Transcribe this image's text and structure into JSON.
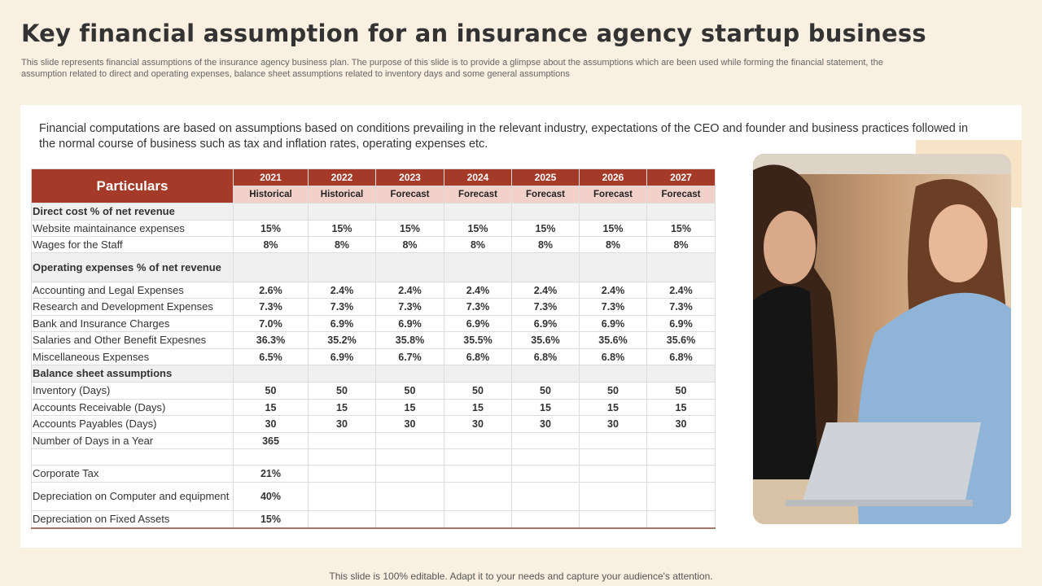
{
  "header": {
    "title": "Key financial assumption for an insurance agency startup business",
    "description": "This slide represents financial assumptions of the insurance agency business plan. The purpose of this slide is to provide a glimpse about the assumptions which are been used while forming the financial statement, the assumption related to direct and operating expenses, balance sheet assumptions related to inventory days and some general assumptions"
  },
  "intro": "Financial computations are based on assumptions based on conditions prevailing in the relevant industry, expectations of the CEO and founder and business practices followed in the normal course of business such as tax and inflation rates, operating expenses etc.",
  "table": {
    "corner": "Particulars",
    "years": [
      "2021",
      "2022",
      "2023",
      "2024",
      "2025",
      "2026",
      "2027"
    ],
    "phases": [
      "Historical",
      "Historical",
      "Forecast",
      "Forecast",
      "Forecast",
      "Forecast",
      "Forecast"
    ],
    "rows": [
      {
        "section": "Direct cost % of net revenue"
      },
      {
        "label": "Website maintainance expenses",
        "cells": [
          "15%",
          "15%",
          "15%",
          "15%",
          "15%",
          "15%",
          "15%"
        ]
      },
      {
        "label": "Wages for the Staff",
        "cells": [
          "8%",
          "8%",
          "8%",
          "8%",
          "8%",
          "8%",
          "8%"
        ]
      },
      {
        "section": "Operating expenses % of net revenue"
      },
      {
        "label": "Accounting and Legal Expenses",
        "cells": [
          "2.6%",
          "2.4%",
          "2.4%",
          "2.4%",
          "2.4%",
          "2.4%",
          "2.4%"
        ]
      },
      {
        "label": "Research and Development  Expenses",
        "cells": [
          "7.3%",
          "7.3%",
          "7.3%",
          "7.3%",
          "7.3%",
          "7.3%",
          "7.3%"
        ]
      },
      {
        "label": "Bank and Insurance  Charges",
        "cells": [
          "7.0%",
          "6.9%",
          "6.9%",
          "6.9%",
          "6.9%",
          "6.9%",
          "6.9%"
        ]
      },
      {
        "label": "Salaries and Other Benefit Expesnes",
        "cells": [
          "36.3%",
          "35.2%",
          "35.8%",
          "35.5%",
          "35.6%",
          "35.6%",
          "35.6%"
        ]
      },
      {
        "label": "Miscellaneous Expenses",
        "cells": [
          "6.5%",
          "6.9%",
          "6.7%",
          "6.8%",
          "6.8%",
          "6.8%",
          "6.8%"
        ]
      },
      {
        "section": "Balance sheet assumptions"
      },
      {
        "label": "Inventory (Days)",
        "cells": [
          "50",
          "50",
          "50",
          "50",
          "50",
          "50",
          "50"
        ]
      },
      {
        "label": "Accounts Receivable (Days)",
        "cells": [
          "15",
          "15",
          "15",
          "15",
          "15",
          "15",
          "15"
        ]
      },
      {
        "label": "Accounts Payables (Days)",
        "cells": [
          "30",
          "30",
          "30",
          "30",
          "30",
          "30",
          "30"
        ]
      },
      {
        "label": "Number of Days in a Year",
        "cells": [
          "365"
        ]
      },
      {
        "label": null
      },
      {
        "label": "Corporate Tax",
        "cells": [
          "21%"
        ]
      },
      {
        "label": "Depreciation on Computer and equipment",
        "cells": [
          "40%"
        ]
      },
      {
        "label": "Depreciation on Fixed Assets",
        "cells": [
          "15%"
        ]
      }
    ]
  },
  "footer": "This slide is 100% editable. Adapt it to your needs and capture your audience's attention."
}
